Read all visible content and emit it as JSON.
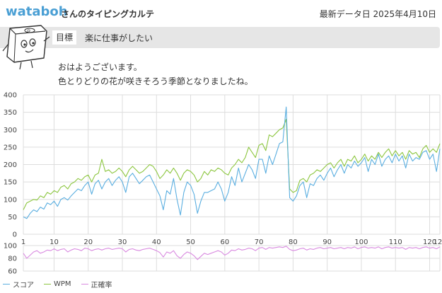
{
  "header": {
    "username": "wataboh",
    "suffix": "さんのタイピングカルテ",
    "last_updated": "最新データ日 2025年4月10日"
  },
  "goal": {
    "label": "目標",
    "text": "楽に仕事がしたい"
  },
  "greeting": {
    "line1": "おはようございます。",
    "line2": "色とりどりの花が咲きそろう季節となりましたね。"
  },
  "mascot": {
    "icon": "keycap-mascot-icon"
  },
  "colors": {
    "score": "#5aaee0",
    "wpm": "#8cc63f",
    "accuracy": "#d98ae0",
    "grid": "#dddddd"
  },
  "chart_data": [
    {
      "type": "line",
      "title": "",
      "xlabel": "",
      "ylabel": "",
      "ylim": [
        0,
        400
      ],
      "xlim": [
        1,
        123
      ],
      "xticks": [
        1,
        10,
        20,
        30,
        40,
        50,
        60,
        70,
        80,
        90,
        100,
        110,
        120,
        123
      ],
      "yticks": [
        0,
        50,
        100,
        150,
        200,
        250,
        300,
        350,
        400
      ],
      "grid": true,
      "legend": "bottom-left",
      "series": [
        {
          "name": "スコア",
          "color": "#5aaee0",
          "values": [
            50,
            45,
            60,
            70,
            65,
            78,
            72,
            90,
            85,
            95,
            80,
            100,
            105,
            98,
            110,
            120,
            130,
            125,
            140,
            150,
            115,
            145,
            155,
            130,
            150,
            160,
            140,
            155,
            165,
            150,
            120,
            165,
            175,
            160,
            145,
            155,
            165,
            170,
            150,
            130,
            110,
            70,
            125,
            115,
            160,
            100,
            55,
            120,
            150,
            140,
            115,
            60,
            95,
            120,
            120,
            125,
            130,
            150,
            130,
            95,
            120,
            165,
            140,
            190,
            150,
            175,
            200,
            185,
            160,
            215,
            215,
            175,
            225,
            200,
            230,
            260,
            265,
            365,
            105,
            95,
            110,
            140,
            150,
            105,
            145,
            140,
            160,
            170,
            155,
            175,
            190,
            165,
            185,
            200,
            175,
            200,
            190,
            210,
            195,
            205,
            220,
            180,
            215,
            200,
            230,
            195,
            215,
            225,
            205,
            230,
            210,
            225,
            190,
            230,
            210,
            220,
            215,
            235,
            240,
            215,
            230,
            180,
            245
          ]
        },
        {
          "name": "WPM",
          "color": "#8cc63f",
          "values": [
            70,
            90,
            95,
            100,
            98,
            110,
            105,
            120,
            115,
            125,
            120,
            135,
            140,
            130,
            145,
            150,
            160,
            155,
            165,
            170,
            150,
            170,
            175,
            215,
            180,
            185,
            175,
            180,
            190,
            180,
            165,
            185,
            195,
            185,
            175,
            180,
            190,
            200,
            195,
            180,
            160,
            170,
            185,
            175,
            190,
            175,
            155,
            175,
            185,
            180,
            170,
            150,
            160,
            180,
            170,
            185,
            180,
            190,
            185,
            175,
            170,
            190,
            200,
            215,
            205,
            220,
            250,
            235,
            220,
            255,
            260,
            240,
            285,
            280,
            290,
            300,
            305,
            330,
            130,
            120,
            125,
            155,
            160,
            150,
            170,
            175,
            185,
            180,
            190,
            200,
            205,
            190,
            205,
            215,
            195,
            215,
            210,
            225,
            205,
            215,
            230,
            210,
            225,
            215,
            235,
            220,
            235,
            245,
            225,
            240,
            225,
            235,
            215,
            240,
            230,
            235,
            220,
            245,
            255,
            235,
            245,
            235,
            260
          ]
        },
        {
          "name": "正確率",
          "color": "#d98ae0",
          "axis": "secondary",
          "ylim": [
            60,
            100
          ],
          "yticks": [
            60,
            80,
            100
          ],
          "values": [
            88,
            80,
            85,
            90,
            92,
            88,
            90,
            93,
            92,
            95,
            92,
            94,
            95,
            90,
            93,
            95,
            94,
            92,
            96,
            95,
            92,
            94,
            95,
            93,
            95,
            96,
            94,
            95,
            96,
            95,
            90,
            94,
            95,
            93,
            92,
            94,
            95,
            96,
            94,
            92,
            89,
            82,
            90,
            88,
            92,
            84,
            80,
            86,
            90,
            88,
            84,
            78,
            83,
            88,
            86,
            88,
            90,
            92,
            90,
            85,
            88,
            93,
            92,
            95,
            93,
            94,
            96,
            95,
            92,
            96,
            97,
            94,
            97,
            96,
            97,
            98,
            97,
            99,
            94,
            92,
            93,
            95,
            96,
            93,
            95,
            94,
            96,
            97,
            95,
            96,
            97,
            95,
            96,
            97,
            95,
            97,
            96,
            98,
            95,
            97,
            98,
            96,
            97,
            96,
            98,
            95,
            97,
            98,
            96,
            97,
            96,
            97,
            94,
            97,
            96,
            97,
            95,
            97,
            98,
            96,
            97,
            95,
            98
          ]
        }
      ]
    }
  ]
}
